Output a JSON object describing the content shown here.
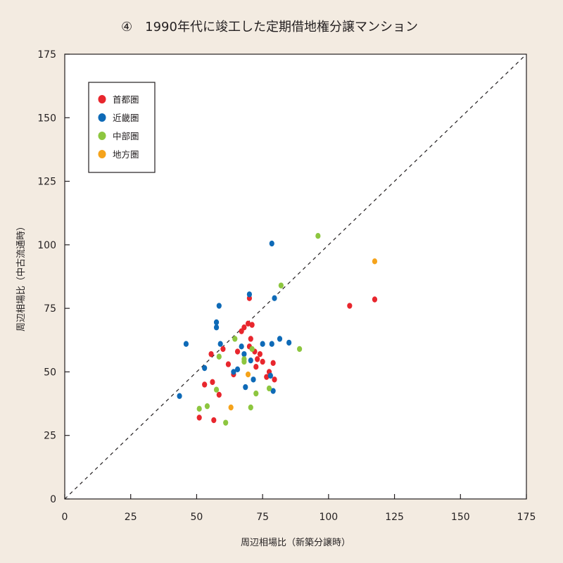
{
  "chart_data": {
    "type": "scatter",
    "title": "④　1990年代に竣工した定期借地権分譲マンション",
    "xlabel": "周辺相場比（新築分譲時）",
    "ylabel": "周辺相場比（中古流通時）",
    "xlim": [
      0,
      175
    ],
    "ylim": [
      0,
      175
    ],
    "x_ticks": [
      0,
      25,
      50,
      75,
      100,
      125,
      150,
      175
    ],
    "y_ticks": [
      0,
      25,
      50,
      75,
      100,
      125,
      150,
      175
    ],
    "reference_line": {
      "style": "dashed",
      "from": [
        0,
        0
      ],
      "to": [
        175,
        175
      ]
    },
    "legend_position": "top-left",
    "series": [
      {
        "name": "首都圏",
        "color": "#e8262d",
        "points": [
          [
            51,
            32
          ],
          [
            53,
            45
          ],
          [
            55.5,
            57
          ],
          [
            56,
            46
          ],
          [
            56.5,
            31
          ],
          [
            58.5,
            41
          ],
          [
            60,
            59
          ],
          [
            62,
            53
          ],
          [
            64,
            49
          ],
          [
            65.5,
            58
          ],
          [
            67,
            66
          ],
          [
            68,
            67.5
          ],
          [
            69.5,
            69
          ],
          [
            70,
            60
          ],
          [
            70.5,
            63
          ],
          [
            71,
            68.5
          ],
          [
            72,
            58
          ],
          [
            72.5,
            52
          ],
          [
            73,
            55
          ],
          [
            74,
            57
          ],
          [
            75,
            54
          ],
          [
            76.5,
            48
          ],
          [
            77.5,
            50
          ],
          [
            79,
            53.5
          ],
          [
            79.5,
            47
          ],
          [
            70,
            79
          ],
          [
            108,
            76
          ],
          [
            117.5,
            78.5
          ]
        ]
      },
      {
        "name": "近畿圏",
        "color": "#0e6ab7",
        "points": [
          [
            43.5,
            40.5
          ],
          [
            46,
            61
          ],
          [
            53,
            51.5
          ],
          [
            57.5,
            67.5
          ],
          [
            57.5,
            69.5
          ],
          [
            58.5,
            76
          ],
          [
            59,
            61
          ],
          [
            64,
            50
          ],
          [
            65.5,
            51
          ],
          [
            67,
            60
          ],
          [
            68,
            57
          ],
          [
            68.5,
            44
          ],
          [
            70,
            80.5
          ],
          [
            70.5,
            54.5
          ],
          [
            71.5,
            47
          ],
          [
            75,
            61
          ],
          [
            78,
            48.5
          ],
          [
            78.5,
            61
          ],
          [
            79,
            42.5
          ],
          [
            79.5,
            79
          ],
          [
            81.5,
            63
          ],
          [
            85,
            61.5
          ],
          [
            78.5,
            100.5
          ]
        ]
      },
      {
        "name": "中部圏",
        "color": "#8dc63f",
        "points": [
          [
            51,
            35.5
          ],
          [
            54,
            36.5
          ],
          [
            57.5,
            43
          ],
          [
            58.5,
            56
          ],
          [
            61,
            30
          ],
          [
            64.5,
            63
          ],
          [
            68,
            55
          ],
          [
            68,
            54
          ],
          [
            70.5,
            36
          ],
          [
            71,
            59
          ],
          [
            72.5,
            41.5
          ],
          [
            77.5,
            43.5
          ],
          [
            82,
            84
          ],
          [
            89,
            59
          ],
          [
            96,
            103.5
          ]
        ]
      },
      {
        "name": "地方圏",
        "color": "#f5a31b",
        "points": [
          [
            63,
            36
          ],
          [
            69.5,
            49
          ],
          [
            117.5,
            93.5
          ]
        ]
      }
    ]
  }
}
